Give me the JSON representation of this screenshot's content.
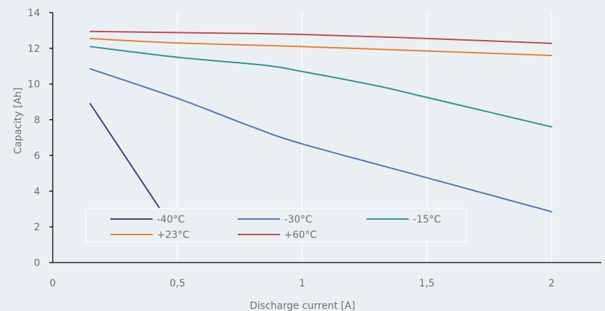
{
  "chart_data": {
    "type": "line",
    "title": "",
    "xlabel": "Discharge current [A]",
    "ylabel": "Capacity [Ah]",
    "xlim": [
      0,
      2.2
    ],
    "ylim": [
      0,
      14
    ],
    "x_ticks": [
      0,
      0.5,
      1,
      1.5,
      2
    ],
    "x_tick_labels": [
      "0",
      "0,5",
      "1",
      "1,5",
      "2"
    ],
    "y_ticks": [
      0,
      2,
      4,
      6,
      8,
      10,
      12,
      14
    ],
    "y_tick_labels": [
      "0",
      "2",
      "4",
      "6",
      "8",
      "10",
      "12",
      "14"
    ],
    "grid": "vertical",
    "legend_position": "bottom-left inside plot",
    "series": [
      {
        "name": "-40°C",
        "color": "#4b3a74",
        "points": [
          [
            0.15,
            8.9
          ],
          [
            0.44,
            2.8
          ]
        ]
      },
      {
        "name": "-30°C",
        "color": "#4c78b6",
        "points": [
          [
            0.15,
            10.85
          ],
          [
            0.5,
            9.2
          ],
          [
            0.8,
            7.6
          ],
          [
            1.0,
            6.65
          ],
          [
            1.5,
            4.75
          ],
          [
            2.0,
            2.85
          ]
        ]
      },
      {
        "name": "-15°C",
        "color": "#2b9490",
        "points": [
          [
            0.15,
            12.1
          ],
          [
            0.5,
            11.5
          ],
          [
            0.85,
            11.05
          ],
          [
            1.0,
            10.7
          ],
          [
            1.3,
            9.9
          ],
          [
            1.5,
            9.25
          ],
          [
            2.0,
            7.6
          ]
        ]
      },
      {
        "name": "+23°C",
        "color": "#e57e34",
        "points": [
          [
            0.15,
            12.55
          ],
          [
            0.5,
            12.3
          ],
          [
            1.0,
            12.1
          ],
          [
            1.5,
            11.85
          ],
          [
            2.0,
            11.6
          ]
        ]
      },
      {
        "name": "+60°C",
        "color": "#b84c4c",
        "points": [
          [
            0.15,
            12.95
          ],
          [
            0.5,
            12.88
          ],
          [
            1.0,
            12.78
          ],
          [
            1.5,
            12.55
          ],
          [
            2.0,
            12.28
          ]
        ]
      }
    ]
  }
}
